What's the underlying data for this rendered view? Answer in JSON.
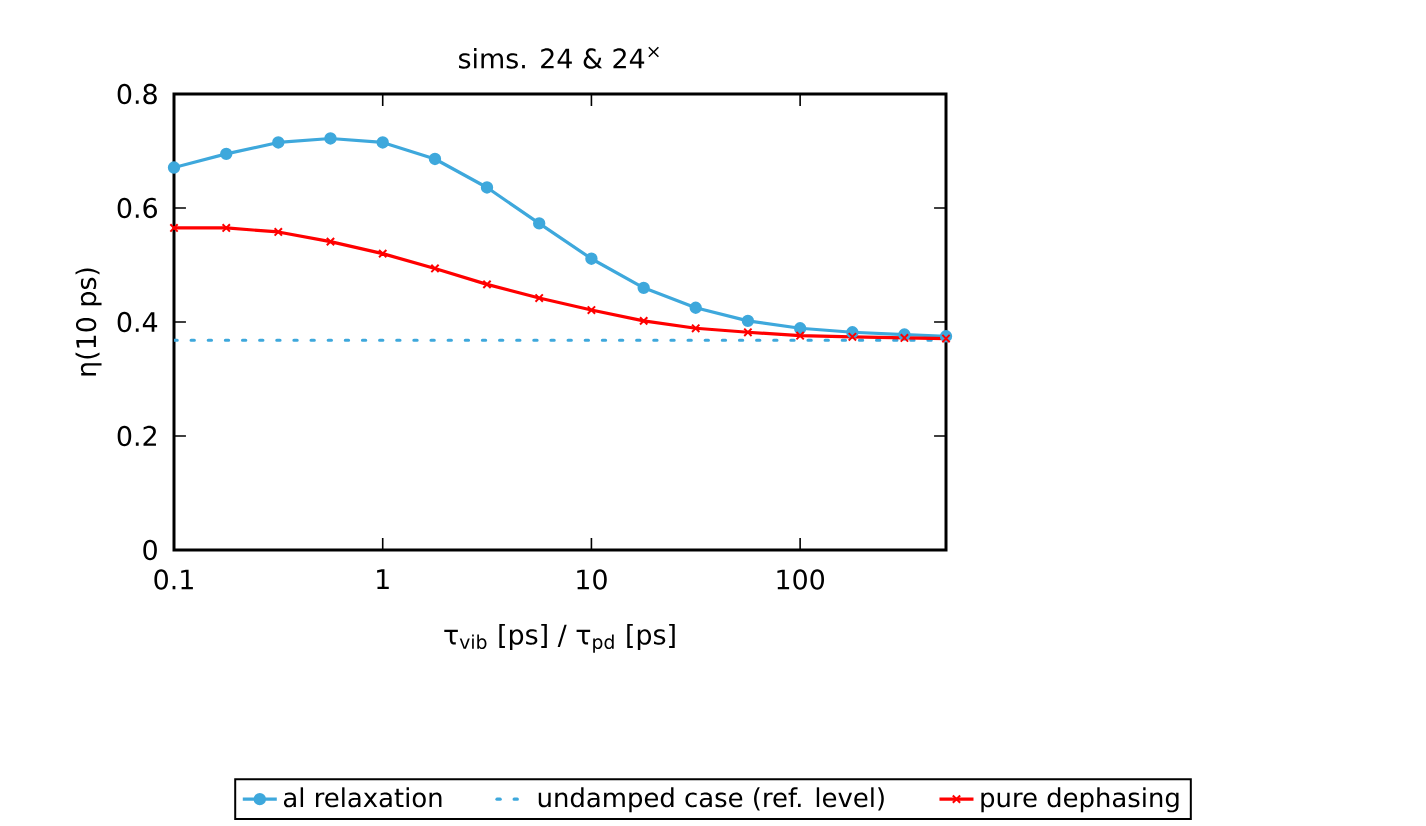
{
  "chart_data": {
    "type": "line",
    "title": "sims. 24 & 24$^{×}$",
    "xlabel": "τ$_{vib}$ [ps] / τ$_{pd}$ [ps]",
    "ylabel": "η(10 ps)",
    "log": "x",
    "xlim": [
      0.1,
      500
    ],
    "ylim": [
      0,
      0.8
    ],
    "xticks": [
      0.1,
      1,
      10,
      100
    ],
    "yticks": [
      0,
      0.2,
      0.4,
      0.6,
      0.8
    ],
    "legend": "bottom",
    "grid": false,
    "series": [
      {
        "name": "al relaxation",
        "color": "#3ea8dc",
        "marker": "circle",
        "line_style": "solid",
        "x": [
          0.1,
          0.178,
          0.316,
          0.562,
          1,
          1.78,
          3.16,
          5.62,
          10,
          17.8,
          31.6,
          56.2,
          100,
          178,
          316,
          500
        ],
        "values": [
          0.671,
          0.695,
          0.715,
          0.722,
          0.715,
          0.686,
          0.636,
          0.573,
          0.511,
          0.46,
          0.425,
          0.402,
          0.389,
          0.382,
          0.378,
          0.375
        ]
      },
      {
        "name": "undamped case (ref. level)",
        "color": "#3ea8dc",
        "marker": "none",
        "line_style": "dotted",
        "x": [
          0.1,
          500
        ],
        "values": [
          0.368,
          0.368
        ]
      },
      {
        "name": "pure dephasing",
        "color": "#ff0000",
        "marker": "cross",
        "line_style": "solid",
        "x": [
          0.1,
          0.178,
          0.316,
          0.562,
          1,
          1.78,
          3.16,
          5.62,
          10,
          17.8,
          31.6,
          56.2,
          100,
          178,
          316,
          500
        ],
        "values": [
          0.565,
          0.565,
          0.558,
          0.541,
          0.52,
          0.494,
          0.466,
          0.442,
          0.421,
          0.402,
          0.389,
          0.382,
          0.376,
          0.374,
          0.372,
          0.371
        ]
      }
    ]
  }
}
